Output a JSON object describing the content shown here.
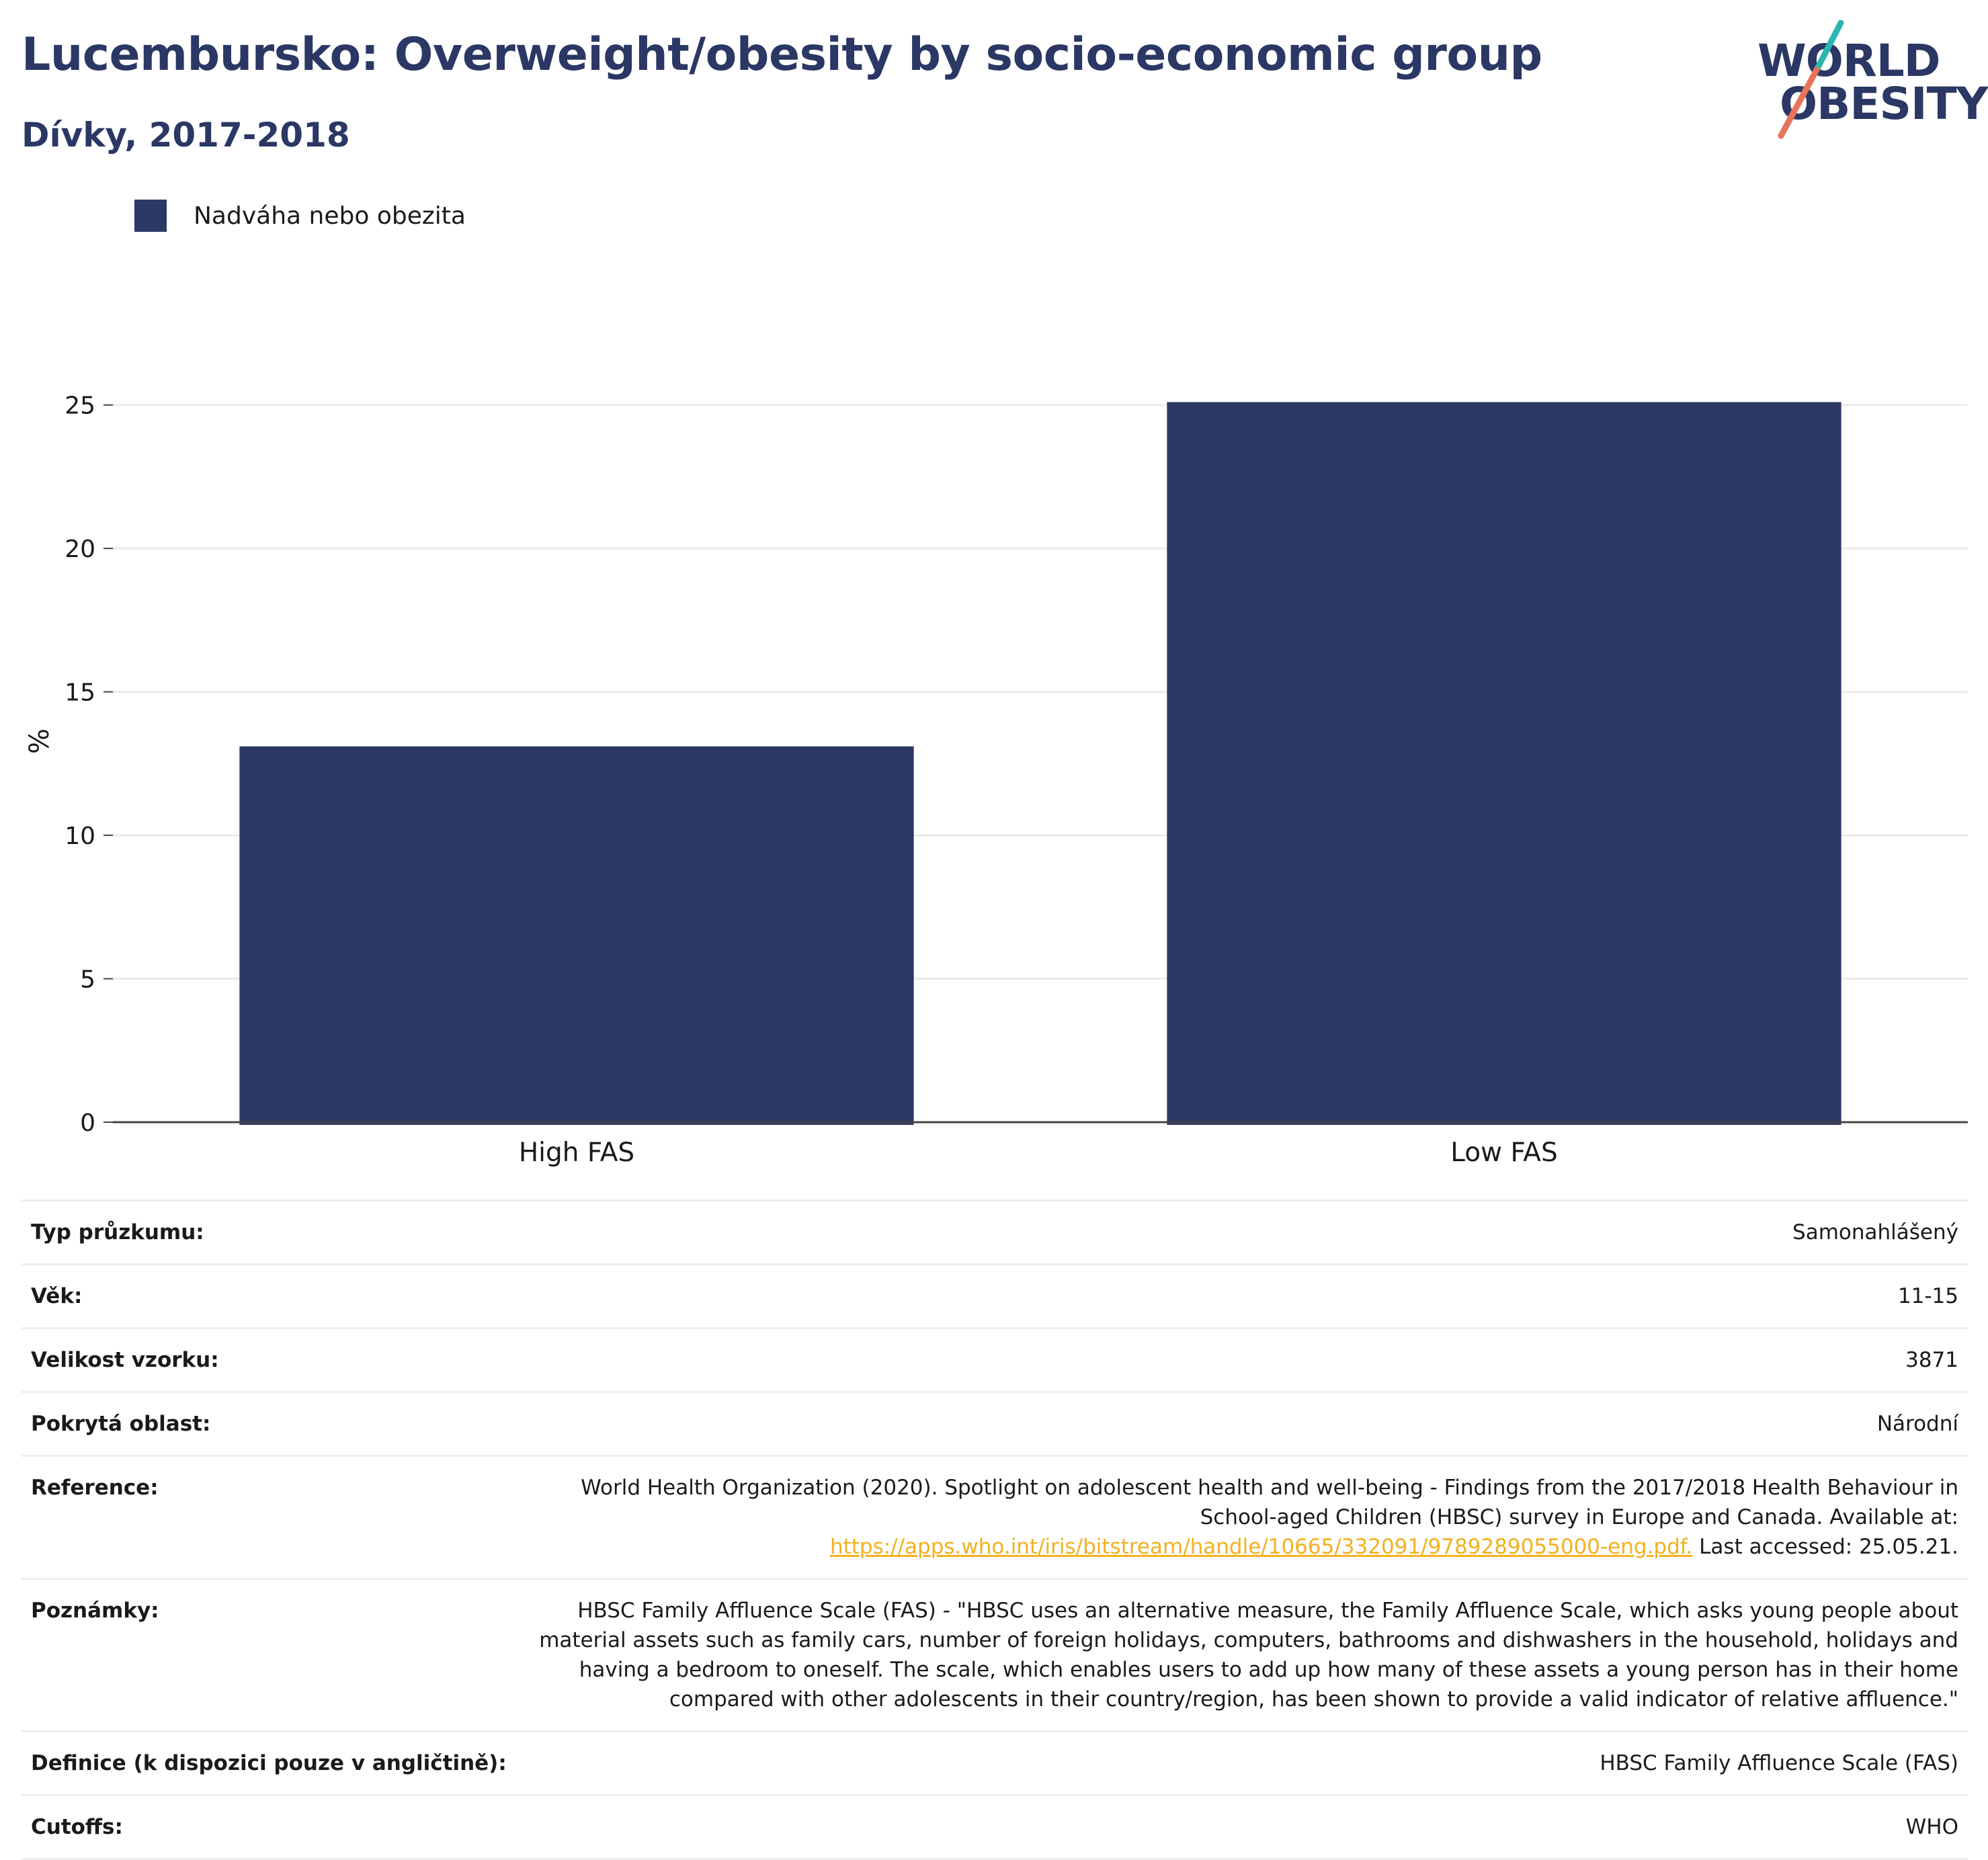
{
  "header": {
    "title": "Lucembursko: Overweight/obesity by socio-economic group",
    "subtitle": "Dívky, 2017-2018"
  },
  "logo": {
    "line1": "WORLD",
    "line2": "OBESITY",
    "colors": {
      "text": "#2b3764",
      "slash_top": "#2bb5b0",
      "slash_bottom": "#e8735a"
    }
  },
  "legend": {
    "label": "Nadváha nebo obezita",
    "color": "#2b3764"
  },
  "chart_data": {
    "type": "bar",
    "categories": [
      "High FAS",
      "Low FAS"
    ],
    "series": [
      {
        "name": "Nadváha nebo obezita",
        "values": [
          13.1,
          25.1
        ],
        "color": "#2b3764"
      }
    ],
    "ylabel": "%",
    "xlabel": "",
    "ylim": [
      0,
      26
    ],
    "yticks": [
      0,
      5,
      10,
      15,
      20,
      25
    ],
    "grid": true,
    "legend_position": "top-left"
  },
  "info": {
    "rows": [
      {
        "label": "Typ průzkumu:",
        "value": "Samonahlášený"
      },
      {
        "label": "Věk:",
        "value": "11-15"
      },
      {
        "label": "Velikost vzorku:",
        "value": "3871"
      },
      {
        "label": "Pokrytá oblast:",
        "value": "Národní"
      }
    ],
    "reference": {
      "label": "Reference:",
      "text": "World Health Organization (2020). Spotlight on adolescent health and well-being - Findings from the 2017/2018 Health Behaviour in School-aged Children (HBSC) survey in Europe and Canada. Available at:",
      "link": "https://apps.who.int/iris/bitstream/handle/10665/332091/9789289055000-eng.pdf.",
      "suffix": "Last accessed: 25.05.21."
    },
    "notes": {
      "label": "Poznámky:",
      "text": "HBSC Family Affluence Scale (FAS) - \"HBSC uses an alternative measure, the Family Affluence Scale, which asks young people about material assets such as family cars, number of foreign holidays, computers, bathrooms and dishwashers in the household, holidays and having a bedroom to oneself. The scale, which enables users to add up how many of these assets a young person has in their home compared with other adolescents in their country/region, has been shown to provide a valid indicator of relative affluence.\""
    },
    "rows_after": [
      {
        "label": "Definice (k dispozici pouze v angličtině):",
        "value": "HBSC Family Affluence Scale (FAS)"
      },
      {
        "label": "Cutoffs:",
        "value": "WHO"
      }
    ]
  }
}
